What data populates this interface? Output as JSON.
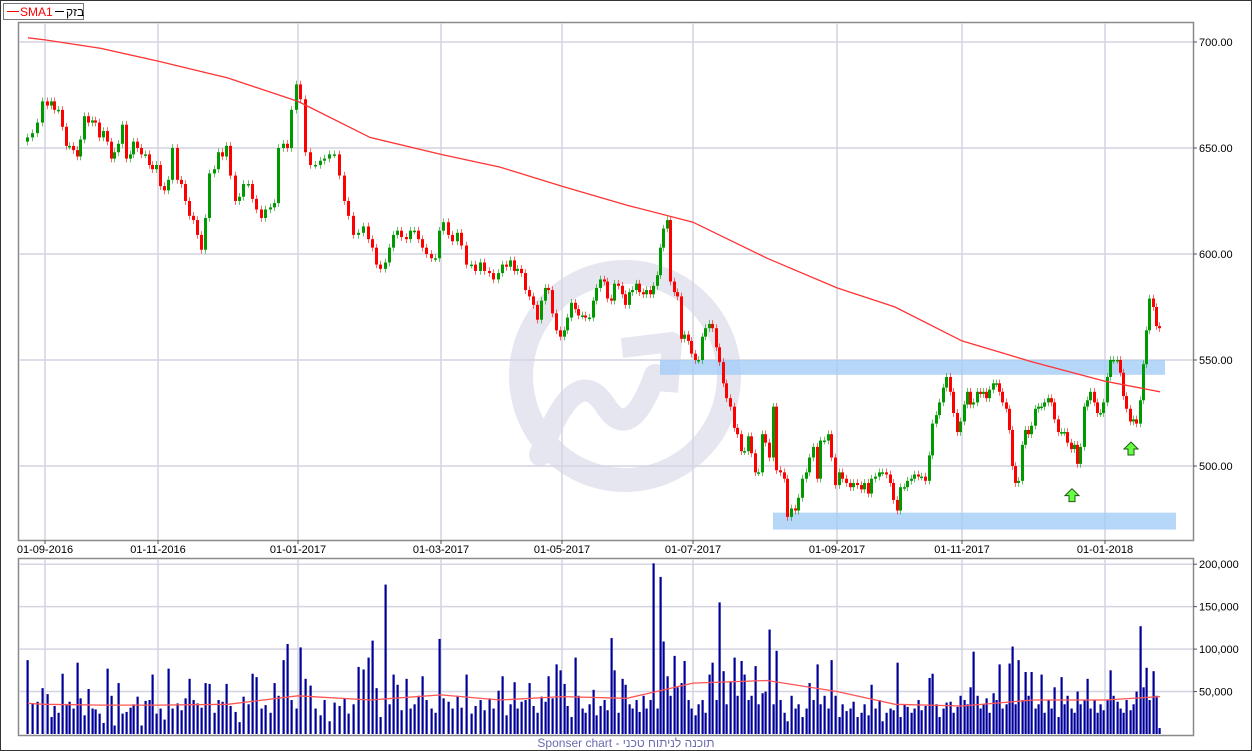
{
  "legend": {
    "sma_label": "SMA1",
    "symbol_label": "בזק"
  },
  "footer": "Sponser chart - תוכנה לניתוח טכני",
  "colors": {
    "up": "#009900",
    "down": "#ff0000",
    "sma": "#ff3333",
    "volume": "#000099",
    "zone": "#9fcaf7",
    "arrow": "#66ff44",
    "grid": "#d4d4e2",
    "watermark": "#e6e6f1"
  },
  "chart_data": [
    {
      "type": "candlestick",
      "legend": [
        "SMA1",
        "בזק"
      ],
      "ylim": [
        465,
        709
      ],
      "y_ticks": [
        "700.00",
        "650.00",
        "600.00",
        "550.00",
        "500.00"
      ],
      "y_tick_values": [
        700,
        650,
        600,
        550,
        500
      ],
      "x_ticks": [
        "01-09-2016",
        "01-11-2016",
        "01-01-2017",
        "01-03-2017",
        "01-05-2017",
        "01-07-2017",
        "01-09-2017",
        "01-11-2017",
        "01-01-2018"
      ],
      "grid": true,
      "months": [
        {
          "month": "2016-08",
          "close": [
            655,
            657,
            662,
            672
          ]
        },
        {
          "month": "2016-09",
          "close": [
            670,
            672,
            668,
            668,
            660,
            651,
            651,
            649,
            646,
            654,
            665,
            662,
            663,
            662,
            655
          ]
        },
        {
          "month": "2016-10",
          "close": [
            658,
            653,
            645,
            648,
            652,
            661,
            645,
            647,
            653,
            650,
            647,
            647,
            642,
            640,
            642
          ]
        },
        {
          "month": "2016-11",
          "close": [
            632,
            630,
            635,
            650,
            635,
            633,
            625,
            618,
            616,
            609,
            602,
            617,
            638,
            640,
            648,
            646,
            651
          ]
        },
        {
          "month": "2016-12",
          "close": [
            637,
            625,
            627,
            633,
            633,
            626,
            621,
            617,
            621,
            622,
            624,
            650,
            652,
            650,
            668,
            680
          ]
        },
        {
          "month": "2017-01",
          "close": [
            673,
            648,
            642,
            642,
            644,
            645,
            647,
            647,
            637,
            625,
            618,
            609,
            610,
            613,
            607
          ]
        },
        {
          "month": "2017-02",
          "close": [
            603,
            595,
            593,
            596,
            603,
            609,
            611,
            608,
            607,
            611,
            611,
            607,
            603,
            600,
            598,
            598,
            611
          ]
        },
        {
          "month": "2017-03",
          "close": [
            615,
            609,
            606,
            610,
            604,
            595,
            595,
            592,
            596,
            592,
            591,
            588,
            591
          ]
        },
        {
          "month": "2017-04",
          "close": [
            595,
            594,
            597,
            592,
            593,
            591,
            583,
            580,
            576,
            569,
            578,
            584,
            583,
            572,
            564,
            561
          ]
        },
        {
          "month": "2017-05",
          "close": [
            564,
            570,
            577,
            574,
            571,
            571,
            570,
            570,
            578,
            584,
            588,
            587,
            579,
            578,
            586,
            585,
            581,
            576
          ]
        },
        {
          "month": "2017-06",
          "close": [
            582,
            583,
            586,
            582,
            581,
            583,
            581,
            585,
            590,
            603,
            612,
            616,
            587,
            582,
            580,
            560,
            562,
            559,
            553
          ]
        },
        {
          "month": "2017-07",
          "close": [
            550,
            550,
            561,
            565,
            567,
            565,
            556,
            549,
            539,
            532,
            528,
            518,
            515,
            507,
            507,
            514,
            506,
            497,
            497,
            515,
            511
          ]
        },
        {
          "month": "2017-08",
          "close": [
            504,
            528,
            498,
            497,
            494,
            476,
            480,
            479,
            485,
            494,
            497,
            504,
            509,
            494,
            512,
            512,
            515,
            504,
            491
          ]
        },
        {
          "month": "2017-09",
          "close": [
            497,
            494,
            492,
            490,
            492,
            491,
            489,
            492,
            487,
            494,
            495,
            497,
            497,
            496,
            492,
            484
          ]
        },
        {
          "month": "2017-10",
          "close": [
            479,
            490,
            490,
            493,
            494,
            496,
            495,
            495,
            493,
            505,
            520,
            524,
            530,
            537,
            542,
            535,
            525,
            516,
            521
          ]
        },
        {
          "month": "2017-11",
          "close": [
            529,
            535,
            529,
            530,
            535,
            534,
            535,
            532,
            536,
            539,
            539,
            535,
            530,
            527,
            517,
            500,
            492,
            493,
            510,
            517,
            515,
            519
          ]
        },
        {
          "month": "2017-12",
          "close": [
            527,
            528,
            528,
            530,
            532,
            530,
            522,
            516,
            516,
            516,
            511,
            508,
            510,
            501,
            509,
            528,
            531,
            535,
            530,
            525,
            525,
            530
          ]
        },
        {
          "month": "2018-01",
          "close": [
            542,
            550,
            550,
            550,
            544,
            533,
            527,
            521,
            522,
            520,
            531,
            548,
            564,
            579,
            575,
            566,
            565
          ]
        }
      ],
      "sma": [
        702,
        701,
        697,
        691,
        683,
        672,
        655,
        647,
        641,
        632,
        623,
        615,
        598,
        584,
        575,
        559,
        549,
        540,
        535
      ],
      "zones": [
        {
          "price_low": 543,
          "price_high": 550,
          "from": "2017-06",
          "to": "2018-01"
        },
        {
          "price_low": 470,
          "price_high": 478,
          "from": "2017-07",
          "to": "2018-01"
        }
      ],
      "markers": [
        {
          "type": "up-arrow",
          "price": 486,
          "month": "2017-12"
        },
        {
          "type": "up-arrow",
          "price": 508,
          "month": "2018-01"
        }
      ]
    },
    {
      "type": "bar",
      "ylim": [
        0,
        207000
      ],
      "y_ticks": [
        "200,000",
        "150,000",
        "100,000",
        "50,000"
      ],
      "y_tick_values": [
        200000,
        150000,
        100000,
        50000
      ],
      "grid": true,
      "volume": [
        [
          87000,
          36000,
          38000,
          54000
        ],
        [
          47000,
          20000,
          33000,
          25000,
          71000,
          34000,
          38000,
          30000,
          84000,
          42000,
          22000,
          53000,
          30000,
          29000,
          24000
        ],
        [
          13000,
          77000,
          45000,
          10000,
          60000,
          24000,
          26000,
          31000,
          35000,
          44000,
          10000,
          39000,
          40000,
          70000,
          24000
        ],
        [
          30000,
          17000,
          77000,
          30000,
          36000,
          28000,
          42000,
          65000,
          40000,
          36000,
          31000,
          60000,
          59000,
          25000,
          40000,
          38000,
          59000
        ],
        [
          33000,
          26000,
          14000,
          44000,
          35000,
          71000,
          67000,
          30000,
          34000,
          25000,
          60000,
          45000,
          87000,
          106000,
          40000,
          30000
        ],
        [
          102000,
          65000,
          57000,
          30000,
          22000,
          40000,
          15000,
          37000,
          33000,
          42000,
          24000,
          35000,
          79000,
          76000,
          90000
        ],
        [
          110000,
          54000,
          20000,
          176000,
          35000,
          70000,
          58000,
          28000,
          65000,
          30000,
          35000,
          45000,
          68000,
          40000,
          30000,
          25000,
          112000
        ],
        [
          42000,
          38000,
          30000,
          45000,
          31000,
          70000,
          24000,
          33000,
          40000,
          28000,
          42000,
          30000,
          51000
        ],
        [
          68000,
          22000,
          35000,
          61000,
          30000,
          38000,
          40000,
          60000,
          33000,
          25000,
          44000,
          38000,
          68000,
          42000,
          82000,
          75000
        ],
        [
          59000,
          33000,
          20000,
          90000,
          45000,
          30000,
          25000,
          35000,
          52000,
          22000,
          33000,
          40000,
          28000,
          113000,
          75000,
          25000,
          65000,
          58000
        ],
        [
          35000,
          30000,
          40000,
          26000,
          45000,
          30000,
          40000,
          201000,
          30000,
          185000,
          109000,
          68000,
          45000,
          92000,
          55000,
          60000,
          86000,
          40000,
          30000
        ],
        [
          22000,
          35000,
          40000,
          25000,
          70000,
          84000,
          40000,
          155000,
          74000,
          35000,
          62000,
          90000,
          45000,
          86000,
          70000,
          40000,
          45000,
          80000,
          35000,
          48000,
          50000
        ],
        [
          123000,
          35000,
          98000,
          40000,
          25000,
          15000,
          45000,
          30000,
          35000,
          20000,
          30000,
          60000,
          40000,
          82000,
          35000,
          45000,
          30000,
          87000,
          45000
        ],
        [
          20000,
          35000,
          27000,
          30000,
          38000,
          20000,
          25000,
          35000,
          22000,
          58000,
          30000,
          40000,
          15000,
          25000,
          30000,
          28000
        ],
        [
          84000,
          20000,
          35000,
          32000,
          25000,
          30000,
          40000,
          28000,
          33000,
          66000,
          71000,
          35000,
          20000,
          30000,
          37000,
          38000,
          25000,
          32000,
          45000
        ],
        [
          40000,
          35000,
          55000,
          97000,
          45000,
          30000,
          35000,
          42000,
          25000,
          48000,
          40000,
          82000,
          30000,
          35000,
          83000,
          103000,
          35000,
          87000,
          40000,
          73000,
          45000,
          73000
        ],
        [
          30000,
          35000,
          70000,
          25000,
          40000,
          30000,
          55000,
          20000,
          67000,
          35000,
          45000,
          30000,
          25000,
          50000,
          35000,
          40000,
          65000,
          30000,
          40000,
          25000,
          35000,
          28000
        ],
        [
          40000,
          75000,
          45000,
          38000,
          30000,
          25000,
          40000,
          28000,
          35000,
          50000,
          127000,
          55000,
          78000,
          40000,
          74000,
          45000,
          7000
        ]
      ],
      "volume_sma": [
        36000,
        35000,
        34000,
        34000,
        35000,
        45000,
        40000,
        46000,
        40000,
        44000,
        42000,
        60000,
        63000,
        50000,
        35000,
        33000,
        40000,
        40000,
        44000
      ]
    }
  ]
}
